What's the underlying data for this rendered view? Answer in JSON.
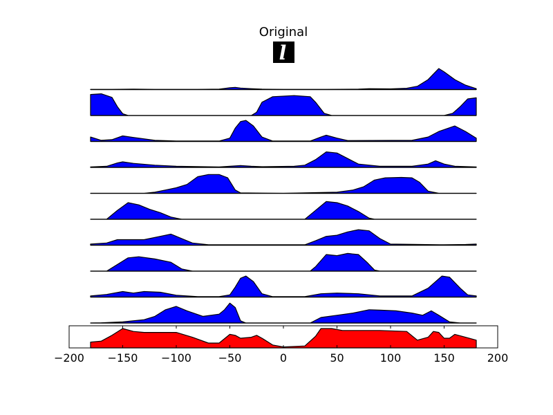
{
  "chart_data": {
    "type": "area",
    "title": "Original",
    "thumbnail_glyph": "l",
    "x_range": [
      -180,
      180
    ],
    "xlim": [
      -200,
      200
    ],
    "xticks": [
      -200,
      -150,
      -100,
      -50,
      0,
      50,
      100,
      150,
      200
    ],
    "blue_color": "#0000ff",
    "red_color": "#ff0000",
    "series": [
      {
        "points": [
          [
            -180,
            0.01
          ],
          [
            -160,
            0.01
          ],
          [
            -140,
            0.02
          ],
          [
            -120,
            0.01
          ],
          [
            -100,
            0.01
          ],
          [
            -80,
            0.01
          ],
          [
            -60,
            0.02
          ],
          [
            -50,
            0.08
          ],
          [
            -45,
            0.1
          ],
          [
            -40,
            0.07
          ],
          [
            -30,
            0.04
          ],
          [
            -20,
            0.02
          ],
          [
            0,
            0.01
          ],
          [
            40,
            0.01
          ],
          [
            70,
            0.02
          ],
          [
            80,
            0.04
          ],
          [
            100,
            0.03
          ],
          [
            115,
            0.06
          ],
          [
            125,
            0.15
          ],
          [
            135,
            0.45
          ],
          [
            140,
            0.7
          ],
          [
            145,
            0.95
          ],
          [
            150,
            0.8
          ],
          [
            160,
            0.45
          ],
          [
            170,
            0.2
          ],
          [
            180,
            0.04
          ]
        ]
      },
      {
        "points": [
          [
            -180,
            0.95
          ],
          [
            -170,
            0.98
          ],
          [
            -160,
            0.82
          ],
          [
            -155,
            0.4
          ],
          [
            -150,
            0.08
          ],
          [
            -145,
            0.0
          ],
          [
            -30,
            0.0
          ],
          [
            -25,
            0.15
          ],
          [
            -20,
            0.6
          ],
          [
            -10,
            0.85
          ],
          [
            10,
            0.9
          ],
          [
            25,
            0.85
          ],
          [
            30,
            0.6
          ],
          [
            38,
            0.1
          ],
          [
            45,
            0.0
          ],
          [
            150,
            0.0
          ],
          [
            158,
            0.1
          ],
          [
            165,
            0.4
          ],
          [
            172,
            0.75
          ],
          [
            180,
            0.8
          ]
        ]
      },
      {
        "points": [
          [
            -180,
            0.2
          ],
          [
            -170,
            0.05
          ],
          [
            -160,
            0.08
          ],
          [
            -150,
            0.25
          ],
          [
            -140,
            0.18
          ],
          [
            -120,
            0.05
          ],
          [
            -100,
            0.02
          ],
          [
            -60,
            0.02
          ],
          [
            -50,
            0.15
          ],
          [
            -45,
            0.6
          ],
          [
            -40,
            0.9
          ],
          [
            -35,
            0.95
          ],
          [
            -28,
            0.7
          ],
          [
            -20,
            0.2
          ],
          [
            -10,
            0.02
          ],
          [
            25,
            0.02
          ],
          [
            35,
            0.2
          ],
          [
            40,
            0.28
          ],
          [
            50,
            0.15
          ],
          [
            60,
            0.04
          ],
          [
            120,
            0.05
          ],
          [
            135,
            0.2
          ],
          [
            145,
            0.45
          ],
          [
            160,
            0.7
          ],
          [
            170,
            0.45
          ],
          [
            180,
            0.15
          ]
        ]
      },
      {
        "points": [
          [
            -180,
            0.02
          ],
          [
            -165,
            0.05
          ],
          [
            -155,
            0.2
          ],
          [
            -150,
            0.25
          ],
          [
            -140,
            0.18
          ],
          [
            -120,
            0.1
          ],
          [
            -100,
            0.05
          ],
          [
            -60,
            0.02
          ],
          [
            -50,
            0.05
          ],
          [
            -40,
            0.08
          ],
          [
            -30,
            0.05
          ],
          [
            -20,
            0.03
          ],
          [
            10,
            0.05
          ],
          [
            20,
            0.1
          ],
          [
            30,
            0.35
          ],
          [
            40,
            0.7
          ],
          [
            50,
            0.65
          ],
          [
            60,
            0.4
          ],
          [
            70,
            0.15
          ],
          [
            90,
            0.05
          ],
          [
            120,
            0.05
          ],
          [
            135,
            0.15
          ],
          [
            142,
            0.3
          ],
          [
            150,
            0.15
          ],
          [
            160,
            0.05
          ],
          [
            180,
            0.02
          ]
        ]
      },
      {
        "points": [
          [
            -180,
            0.0
          ],
          [
            -130,
            0.0
          ],
          [
            -120,
            0.05
          ],
          [
            -110,
            0.15
          ],
          [
            -100,
            0.25
          ],
          [
            -90,
            0.4
          ],
          [
            -80,
            0.75
          ],
          [
            -70,
            0.85
          ],
          [
            -60,
            0.85
          ],
          [
            -52,
            0.7
          ],
          [
            -45,
            0.15
          ],
          [
            -40,
            0.02
          ],
          [
            0,
            0.0
          ],
          [
            50,
            0.05
          ],
          [
            65,
            0.15
          ],
          [
            75,
            0.3
          ],
          [
            85,
            0.6
          ],
          [
            95,
            0.7
          ],
          [
            110,
            0.72
          ],
          [
            120,
            0.7
          ],
          [
            127,
            0.5
          ],
          [
            135,
            0.1
          ],
          [
            145,
            0.0
          ],
          [
            180,
            0.0
          ]
        ]
      },
      {
        "points": [
          [
            -180,
            0.0
          ],
          [
            -165,
            0.0
          ],
          [
            -155,
            0.4
          ],
          [
            -145,
            0.75
          ],
          [
            -135,
            0.65
          ],
          [
            -125,
            0.45
          ],
          [
            -115,
            0.3
          ],
          [
            -105,
            0.1
          ],
          [
            -95,
            0.0
          ],
          [
            20,
            0.0
          ],
          [
            30,
            0.4
          ],
          [
            40,
            0.8
          ],
          [
            50,
            0.75
          ],
          [
            60,
            0.6
          ],
          [
            70,
            0.35
          ],
          [
            80,
            0.05
          ],
          [
            85,
            0.0
          ],
          [
            180,
            0.0
          ]
        ]
      },
      {
        "points": [
          [
            -180,
            0.05
          ],
          [
            -165,
            0.1
          ],
          [
            -155,
            0.25
          ],
          [
            -145,
            0.25
          ],
          [
            -130,
            0.25
          ],
          [
            -115,
            0.4
          ],
          [
            -105,
            0.5
          ],
          [
            -95,
            0.3
          ],
          [
            -85,
            0.1
          ],
          [
            -70,
            0.02
          ],
          [
            20,
            0.02
          ],
          [
            30,
            0.2
          ],
          [
            40,
            0.4
          ],
          [
            50,
            0.45
          ],
          [
            60,
            0.6
          ],
          [
            70,
            0.7
          ],
          [
            80,
            0.65
          ],
          [
            90,
            0.3
          ],
          [
            100,
            0.05
          ],
          [
            150,
            0.02
          ],
          [
            170,
            0.03
          ],
          [
            180,
            0.05
          ]
        ]
      },
      {
        "points": [
          [
            -180,
            0.0
          ],
          [
            -165,
            0.0
          ],
          [
            -155,
            0.3
          ],
          [
            -145,
            0.6
          ],
          [
            -135,
            0.65
          ],
          [
            -120,
            0.55
          ],
          [
            -105,
            0.4
          ],
          [
            -95,
            0.1
          ],
          [
            -85,
            0.0
          ],
          [
            25,
            0.0
          ],
          [
            30,
            0.2
          ],
          [
            40,
            0.75
          ],
          [
            50,
            0.7
          ],
          [
            60,
            0.8
          ],
          [
            70,
            0.75
          ],
          [
            78,
            0.4
          ],
          [
            85,
            0.05
          ],
          [
            90,
            0.0
          ],
          [
            180,
            0.0
          ]
        ]
      },
      {
        "points": [
          [
            -180,
            0.05
          ],
          [
            -165,
            0.12
          ],
          [
            -150,
            0.25
          ],
          [
            -140,
            0.18
          ],
          [
            -130,
            0.25
          ],
          [
            -115,
            0.22
          ],
          [
            -100,
            0.08
          ],
          [
            -80,
            0.02
          ],
          [
            -60,
            0.02
          ],
          [
            -50,
            0.1
          ],
          [
            -45,
            0.45
          ],
          [
            -40,
            0.85
          ],
          [
            -35,
            0.95
          ],
          [
            -28,
            0.7
          ],
          [
            -20,
            0.15
          ],
          [
            -10,
            0.02
          ],
          [
            20,
            0.02
          ],
          [
            35,
            0.15
          ],
          [
            50,
            0.18
          ],
          [
            70,
            0.15
          ],
          [
            90,
            0.05
          ],
          [
            120,
            0.05
          ],
          [
            135,
            0.4
          ],
          [
            148,
            0.95
          ],
          [
            155,
            0.9
          ],
          [
            165,
            0.4
          ],
          [
            172,
            0.1
          ],
          [
            180,
            0.05
          ]
        ]
      },
      {
        "points": [
          [
            -180,
            0.0
          ],
          [
            -170,
            0.01
          ],
          [
            -150,
            0.05
          ],
          [
            -130,
            0.15
          ],
          [
            -120,
            0.3
          ],
          [
            -110,
            0.6
          ],
          [
            -100,
            0.75
          ],
          [
            -90,
            0.55
          ],
          [
            -75,
            0.3
          ],
          [
            -60,
            0.4
          ],
          [
            -55,
            0.6
          ],
          [
            -50,
            0.9
          ],
          [
            -45,
            0.7
          ],
          [
            -40,
            0.1
          ],
          [
            -35,
            0.0
          ],
          [
            25,
            0.0
          ],
          [
            35,
            0.25
          ],
          [
            50,
            0.35
          ],
          [
            65,
            0.45
          ],
          [
            80,
            0.6
          ],
          [
            90,
            0.58
          ],
          [
            105,
            0.55
          ],
          [
            120,
            0.45
          ],
          [
            130,
            0.35
          ],
          [
            138,
            0.55
          ],
          [
            145,
            0.35
          ],
          [
            155,
            0.05
          ],
          [
            165,
            0.0
          ],
          [
            180,
            0.0
          ]
        ]
      },
      {
        "points": [
          [
            -180,
            0.3
          ],
          [
            -170,
            0.35
          ],
          [
            -160,
            0.65
          ],
          [
            -150,
            1.0
          ],
          [
            -140,
            0.85
          ],
          [
            -130,
            0.8
          ],
          [
            -110,
            0.8
          ],
          [
            -100,
            0.8
          ],
          [
            -85,
            0.55
          ],
          [
            -70,
            0.25
          ],
          [
            -60,
            0.25
          ],
          [
            -50,
            0.7
          ],
          [
            -45,
            0.65
          ],
          [
            -40,
            0.5
          ],
          [
            -30,
            0.55
          ],
          [
            -25,
            0.65
          ],
          [
            -20,
            0.5
          ],
          [
            -10,
            0.15
          ],
          [
            0,
            0.05
          ],
          [
            20,
            0.1
          ],
          [
            30,
            0.6
          ],
          [
            35,
            1.0
          ],
          [
            45,
            1.0
          ],
          [
            55,
            0.9
          ],
          [
            65,
            0.9
          ],
          [
            90,
            0.9
          ],
          [
            115,
            0.85
          ],
          [
            125,
            0.4
          ],
          [
            135,
            0.55
          ],
          [
            140,
            0.85
          ],
          [
            145,
            0.8
          ],
          [
            150,
            0.5
          ],
          [
            155,
            0.5
          ],
          [
            160,
            0.7
          ],
          [
            170,
            0.55
          ],
          [
            180,
            0.4
          ]
        ]
      }
    ]
  }
}
